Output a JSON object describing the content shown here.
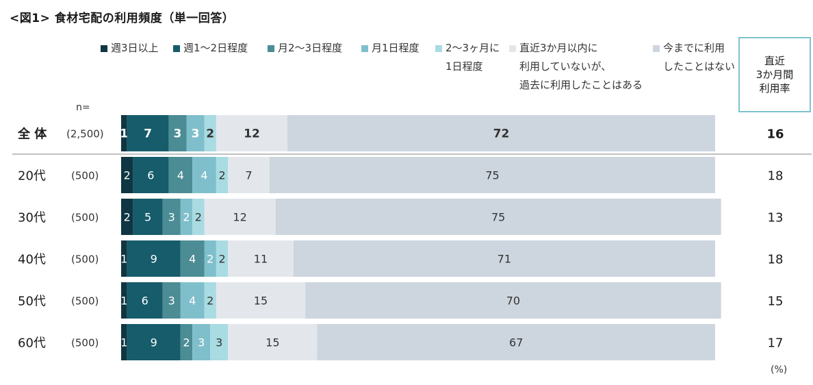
{
  "title": "<図1> 食材宅配の利用頻度（単一回答）",
  "n_label": "n=",
  "unit_label": "(%)",
  "rate_header": "直近\n3か月間\n利用率",
  "legend": [
    {
      "label": "週3日以上",
      "color": "#0f3642"
    },
    {
      "label": "週1～2日程度",
      "color": "#165c6b"
    },
    {
      "label": "月2～3日程度",
      "color": "#4b8c95"
    },
    {
      "label": "月1日程度",
      "color": "#7fbfcb"
    },
    {
      "label": "2～3ヶ月に\n1日程度",
      "color": "#a9dbe2"
    },
    {
      "label": "直近3か月以内に\n利用していないが、\n過去に利用したことはある",
      "color": "#e3e7ec"
    },
    {
      "label": "今までに利用\nしたことはない",
      "color": "#cdd5de"
    }
  ],
  "chart_data": {
    "type": "bar",
    "orientation": "horizontal",
    "stacked": true,
    "xlim": [
      0,
      100
    ],
    "categories": [
      "全 体",
      "20代",
      "30代",
      "40代",
      "50代",
      "60代"
    ],
    "n_values": [
      "(2,500)",
      "(500)",
      "(500)",
      "(500)",
      "(500)",
      "(500)"
    ],
    "series": [
      {
        "name": "週3日以上",
        "values": [
          1,
          2,
          2,
          1,
          1,
          1
        ]
      },
      {
        "name": "週1～2日程度",
        "values": [
          7,
          6,
          5,
          9,
          6,
          9
        ]
      },
      {
        "name": "月2～3日程度",
        "values": [
          3,
          4,
          3,
          4,
          3,
          2
        ]
      },
      {
        "name": "月1日程度",
        "values": [
          3,
          4,
          2,
          2,
          4,
          3
        ]
      },
      {
        "name": "2～3ヶ月に1日程度",
        "values": [
          2,
          2,
          2,
          2,
          2,
          3
        ]
      },
      {
        "name": "直近3か月以内に利用していないが、過去に利用したことはある",
        "values": [
          12,
          7,
          12,
          11,
          15,
          15
        ]
      },
      {
        "name": "今までに利用したことはない",
        "values": [
          72,
          75,
          75,
          71,
          70,
          67
        ]
      }
    ],
    "recent_3month_usage_rate": [
      16,
      18,
      13,
      18,
      15,
      17
    ]
  }
}
